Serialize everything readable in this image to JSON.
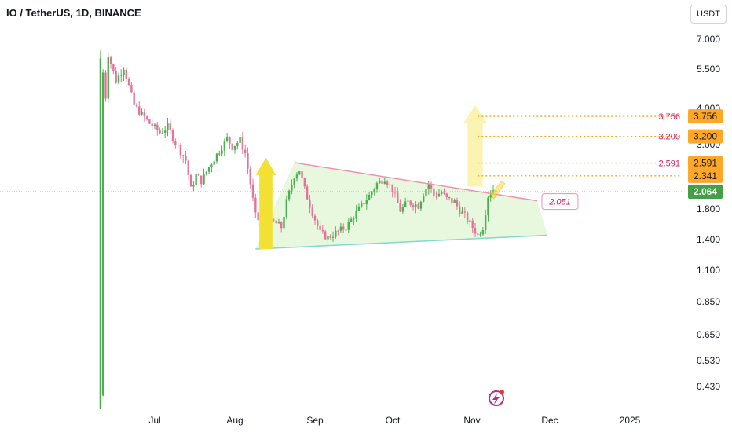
{
  "title": "IO / TetherUS, 1D, BINANCE",
  "currency": "USDT",
  "colors": {
    "up": "#4caf50",
    "down": "#e57399",
    "triangle_fill": "#dff6d4",
    "resistance": "#f48fb1",
    "support": "#80d8d0",
    "target_line": "#f5a623",
    "target_label_bg": "#ffa726",
    "target_text": "#d81b60",
    "last_price_bg": "#43a047",
    "arrow_yellow": "#f2e035",
    "arrow_light": "#fbf3b0",
    "flash_icon": "#b0318a"
  },
  "chart_data": {
    "type": "candlestick",
    "x_axis": {
      "labels": [
        "Jul",
        "Aug",
        "Sep",
        "Oct",
        "Nov",
        "Dec",
        "2025"
      ]
    },
    "y_axis": {
      "scale": "log",
      "labels": [
        "7.000",
        "5.500",
        "4.000",
        "3.000",
        "1.800",
        "1.400",
        "1.100",
        "0.850",
        "0.650",
        "0.530",
        "0.430"
      ]
    },
    "last_price": "2.064",
    "levels": [
      {
        "price": 3.756,
        "label": "3.756"
      },
      {
        "price": 3.2,
        "label": "3.200"
      },
      {
        "price": 2.591,
        "label": "2.591"
      },
      {
        "price": 2.341,
        "label": "2.341"
      }
    ],
    "resistance_label": "2.051",
    "resistance_line": {
      "from": [
        "2024-08-24",
        2.6
      ],
      "to": [
        "2024-11-26",
        1.92
      ]
    },
    "support_line": {
      "from": [
        "2024-08-09",
        1.3
      ],
      "to": [
        "2024-11-30",
        1.45
      ]
    },
    "ohlc_path": [
      [
        "2024-06-11",
        0.4
      ],
      [
        "2024-06-11",
        6.5
      ],
      [
        "2024-06-13",
        4.4
      ],
      [
        "2024-06-14",
        6.2
      ],
      [
        "2024-06-17",
        5.0
      ],
      [
        "2024-06-20",
        5.6
      ],
      [
        "2024-06-24",
        4.1
      ],
      [
        "2024-06-30",
        3.55
      ],
      [
        "2024-07-04",
        3.3
      ],
      [
        "2024-07-07",
        3.45
      ],
      [
        "2024-07-10",
        3.05
      ],
      [
        "2024-07-14",
        2.65
      ],
      [
        "2024-07-16",
        2.1
      ],
      [
        "2024-07-18",
        2.35
      ],
      [
        "2024-07-20",
        2.25
      ],
      [
        "2024-07-24",
        2.6
      ],
      [
        "2024-07-28",
        2.95
      ],
      [
        "2024-07-30",
        3.15
      ],
      [
        "2024-08-01",
        2.95
      ],
      [
        "2024-08-04",
        3.1
      ],
      [
        "2024-08-06",
        2.8
      ],
      [
        "2024-08-08",
        2.2
      ],
      [
        "2024-08-10",
        1.7
      ],
      [
        "2024-08-13",
        1.55
      ],
      [
        "2024-08-17",
        1.62
      ],
      [
        "2024-08-20",
        1.55
      ],
      [
        "2024-08-22",
        1.9
      ],
      [
        "2024-08-25",
        2.35
      ],
      [
        "2024-08-27",
        2.45
      ],
      [
        "2024-08-29",
        2.1
      ],
      [
        "2024-09-01",
        1.75
      ],
      [
        "2024-09-04",
        1.48
      ],
      [
        "2024-09-07",
        1.42
      ],
      [
        "2024-09-10",
        1.48
      ],
      [
        "2024-09-14",
        1.55
      ],
      [
        "2024-09-18",
        1.75
      ],
      [
        "2024-09-23",
        2.0
      ],
      [
        "2024-09-26",
        2.2
      ],
      [
        "2024-09-29",
        2.3
      ],
      [
        "2024-10-02",
        2.1
      ],
      [
        "2024-10-05",
        1.78
      ],
      [
        "2024-10-08",
        1.9
      ],
      [
        "2024-10-12",
        1.85
      ],
      [
        "2024-10-14",
        2.05
      ],
      [
        "2024-10-16",
        2.2
      ],
      [
        "2024-10-18",
        2.0
      ],
      [
        "2024-10-21",
        2.05
      ],
      [
        "2024-10-23",
        1.95
      ],
      [
        "2024-10-26",
        1.9
      ],
      [
        "2024-10-28",
        1.78
      ],
      [
        "2024-10-30",
        1.7
      ],
      [
        "2024-11-02",
        1.55
      ],
      [
        "2024-11-04",
        1.45
      ],
      [
        "2024-11-06",
        1.55
      ],
      [
        "2024-11-08",
        2.0
      ],
      [
        "2024-11-10",
        2.1
      ]
    ]
  }
}
